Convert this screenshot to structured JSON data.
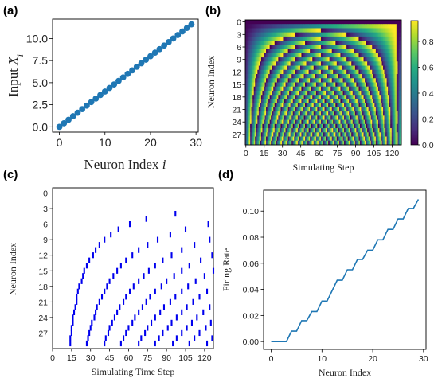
{
  "chart_data": [
    {
      "panel": "(a)",
      "type": "scatter",
      "xlabel": "Neuron Index i",
      "xlabel_text": "Neuron Index ",
      "xlabel_italic": "i",
      "ylabel": "Input X_i",
      "ylabel_text": "Input ",
      "ylabel_italic": "X",
      "ylabel_sub": "i",
      "xlim": [
        -1.5,
        30.5
      ],
      "ylim": [
        -0.6,
        12.2
      ],
      "xticks": [
        "0",
        "10",
        "20",
        "30"
      ],
      "yticks": [
        "0.0",
        "2.5",
        "5.0",
        "7.5",
        "10.0"
      ],
      "color": "#1f77b4",
      "x": [
        0,
        1,
        2,
        3,
        4,
        5,
        6,
        7,
        8,
        9,
        10,
        11,
        12,
        13,
        14,
        15,
        16,
        17,
        18,
        19,
        20,
        21,
        22,
        23,
        24,
        25,
        26,
        27,
        28,
        29
      ],
      "y": [
        0.0,
        0.4,
        0.8,
        1.2,
        1.6,
        2.0,
        2.4,
        2.8,
        3.2,
        3.6,
        4.0,
        4.4,
        4.8,
        5.2,
        5.6,
        6.0,
        6.4,
        6.8,
        7.2,
        7.6,
        8.0,
        8.4,
        8.8,
        9.2,
        9.6,
        10.0,
        10.4,
        10.8,
        11.2,
        11.6
      ]
    },
    {
      "panel": "(b)",
      "type": "heatmap",
      "xlabel": "Simulating Step",
      "ylabel": "Neuron Index",
      "xticks": [
        "0",
        "15",
        "30",
        "45",
        "60",
        "75",
        "90",
        "105",
        "120"
      ],
      "yticks": [
        "0",
        "3",
        "6",
        "9",
        "12",
        "15",
        "18",
        "21",
        "24",
        "27"
      ],
      "colorbar_ticks": [
        "0.0",
        "0.2",
        "0.4",
        "0.6",
        "0.8"
      ],
      "colormap": "viridis",
      "rows": 30,
      "steps": 128,
      "vmin": 0.0,
      "vmax": 0.96
    },
    {
      "panel": "(c)",
      "type": "scatter",
      "xlabel": "Simulating Time Step",
      "ylabel": "Neuron Index",
      "xticks": [
        "0",
        "15",
        "30",
        "45",
        "60",
        "75",
        "90",
        "105",
        "120"
      ],
      "yticks": [
        "0",
        "3",
        "6",
        "9",
        "12",
        "15",
        "18",
        "21",
        "24",
        "27"
      ],
      "color": "#0000ee",
      "spikes": [
        {
          "neuron": 4,
          "times": [
            97
          ]
        },
        {
          "neuron": 5,
          "times": [
            74
          ]
        },
        {
          "neuron": 6,
          "times": [
            61,
            123
          ]
        },
        {
          "neuron": 7,
          "times": [
            52,
            105
          ]
        },
        {
          "neuron": 8,
          "times": [
            46,
            93
          ]
        },
        {
          "neuron": 9,
          "times": [
            41,
            83,
            124
          ]
        },
        {
          "neuron": 10,
          "times": [
            37,
            75,
            112
          ]
        },
        {
          "neuron": 11,
          "times": [
            34,
            68,
            102
          ]
        },
        {
          "neuron": 12,
          "times": [
            32,
            63,
            94,
            126
          ]
        },
        {
          "neuron": 13,
          "times": [
            29,
            58,
            87,
            117
          ]
        },
        {
          "neuron": 14,
          "times": [
            27,
            54,
            81,
            108
          ]
        },
        {
          "neuron": 15,
          "times": [
            25,
            51,
            76,
            102,
            127
          ]
        },
        {
          "neuron": 16,
          "times": [
            24,
            48,
            72,
            96,
            120
          ]
        },
        {
          "neuron": 17,
          "times": [
            23,
            45,
            68,
            90,
            113
          ]
        },
        {
          "neuron": 18,
          "times": [
            21,
            43,
            64,
            86,
            107
          ]
        },
        {
          "neuron": 19,
          "times": [
            20,
            41,
            61,
            81,
            102,
            122
          ]
        },
        {
          "neuron": 20,
          "times": [
            19,
            39,
            58,
            77,
            97,
            116
          ]
        },
        {
          "neuron": 21,
          "times": [
            19,
            37,
            56,
            74,
            93,
            111
          ]
        },
        {
          "neuron": 22,
          "times": [
            18,
            35,
            53,
            71,
            88,
            106,
            124
          ]
        },
        {
          "neuron": 23,
          "times": [
            17,
            34,
            51,
            68,
            85,
            102,
            119
          ]
        },
        {
          "neuron": 24,
          "times": [
            16,
            33,
            49,
            65,
            81,
            98,
            114
          ]
        },
        {
          "neuron": 25,
          "times": [
            16,
            31,
            47,
            63,
            78,
            94,
            110,
            125
          ]
        },
        {
          "neuron": 26,
          "times": [
            15,
            30,
            45,
            60,
            75,
            91,
            106,
            121
          ]
        },
        {
          "neuron": 27,
          "times": [
            15,
            29,
            44,
            58,
            73,
            87,
            102,
            116
          ]
        },
        {
          "neuron": 28,
          "times": [
            14,
            28,
            42,
            56,
            70,
            84,
            98,
            112,
            126
          ]
        },
        {
          "neuron": 29,
          "times": [
            14,
            27,
            41,
            54,
            68,
            81,
            95,
            108,
            122
          ]
        }
      ]
    },
    {
      "panel": "(d)",
      "type": "line",
      "xlabel": "Neuron Index",
      "ylabel": "Firing Rate",
      "xlim": [
        -1.5,
        30.5
      ],
      "ylim": [
        -0.006,
        0.116
      ],
      "xticks": [
        "0",
        "10",
        "20",
        "30"
      ],
      "yticks": [
        "0.00",
        "0.02",
        "0.04",
        "0.06",
        "0.08",
        "0.10"
      ],
      "color": "#1f77b4",
      "x": [
        0,
        1,
        2,
        3,
        4,
        5,
        6,
        7,
        8,
        9,
        10,
        11,
        12,
        13,
        14,
        15,
        16,
        17,
        18,
        19,
        20,
        21,
        22,
        23,
        24,
        25,
        26,
        27,
        28,
        29
      ],
      "y": [
        0.0,
        0.0,
        0.0,
        0.0,
        0.008,
        0.008,
        0.016,
        0.016,
        0.023,
        0.023,
        0.031,
        0.031,
        0.039,
        0.047,
        0.047,
        0.055,
        0.055,
        0.063,
        0.063,
        0.07,
        0.07,
        0.078,
        0.078,
        0.086,
        0.086,
        0.094,
        0.094,
        0.102,
        0.102,
        0.109
      ]
    }
  ]
}
